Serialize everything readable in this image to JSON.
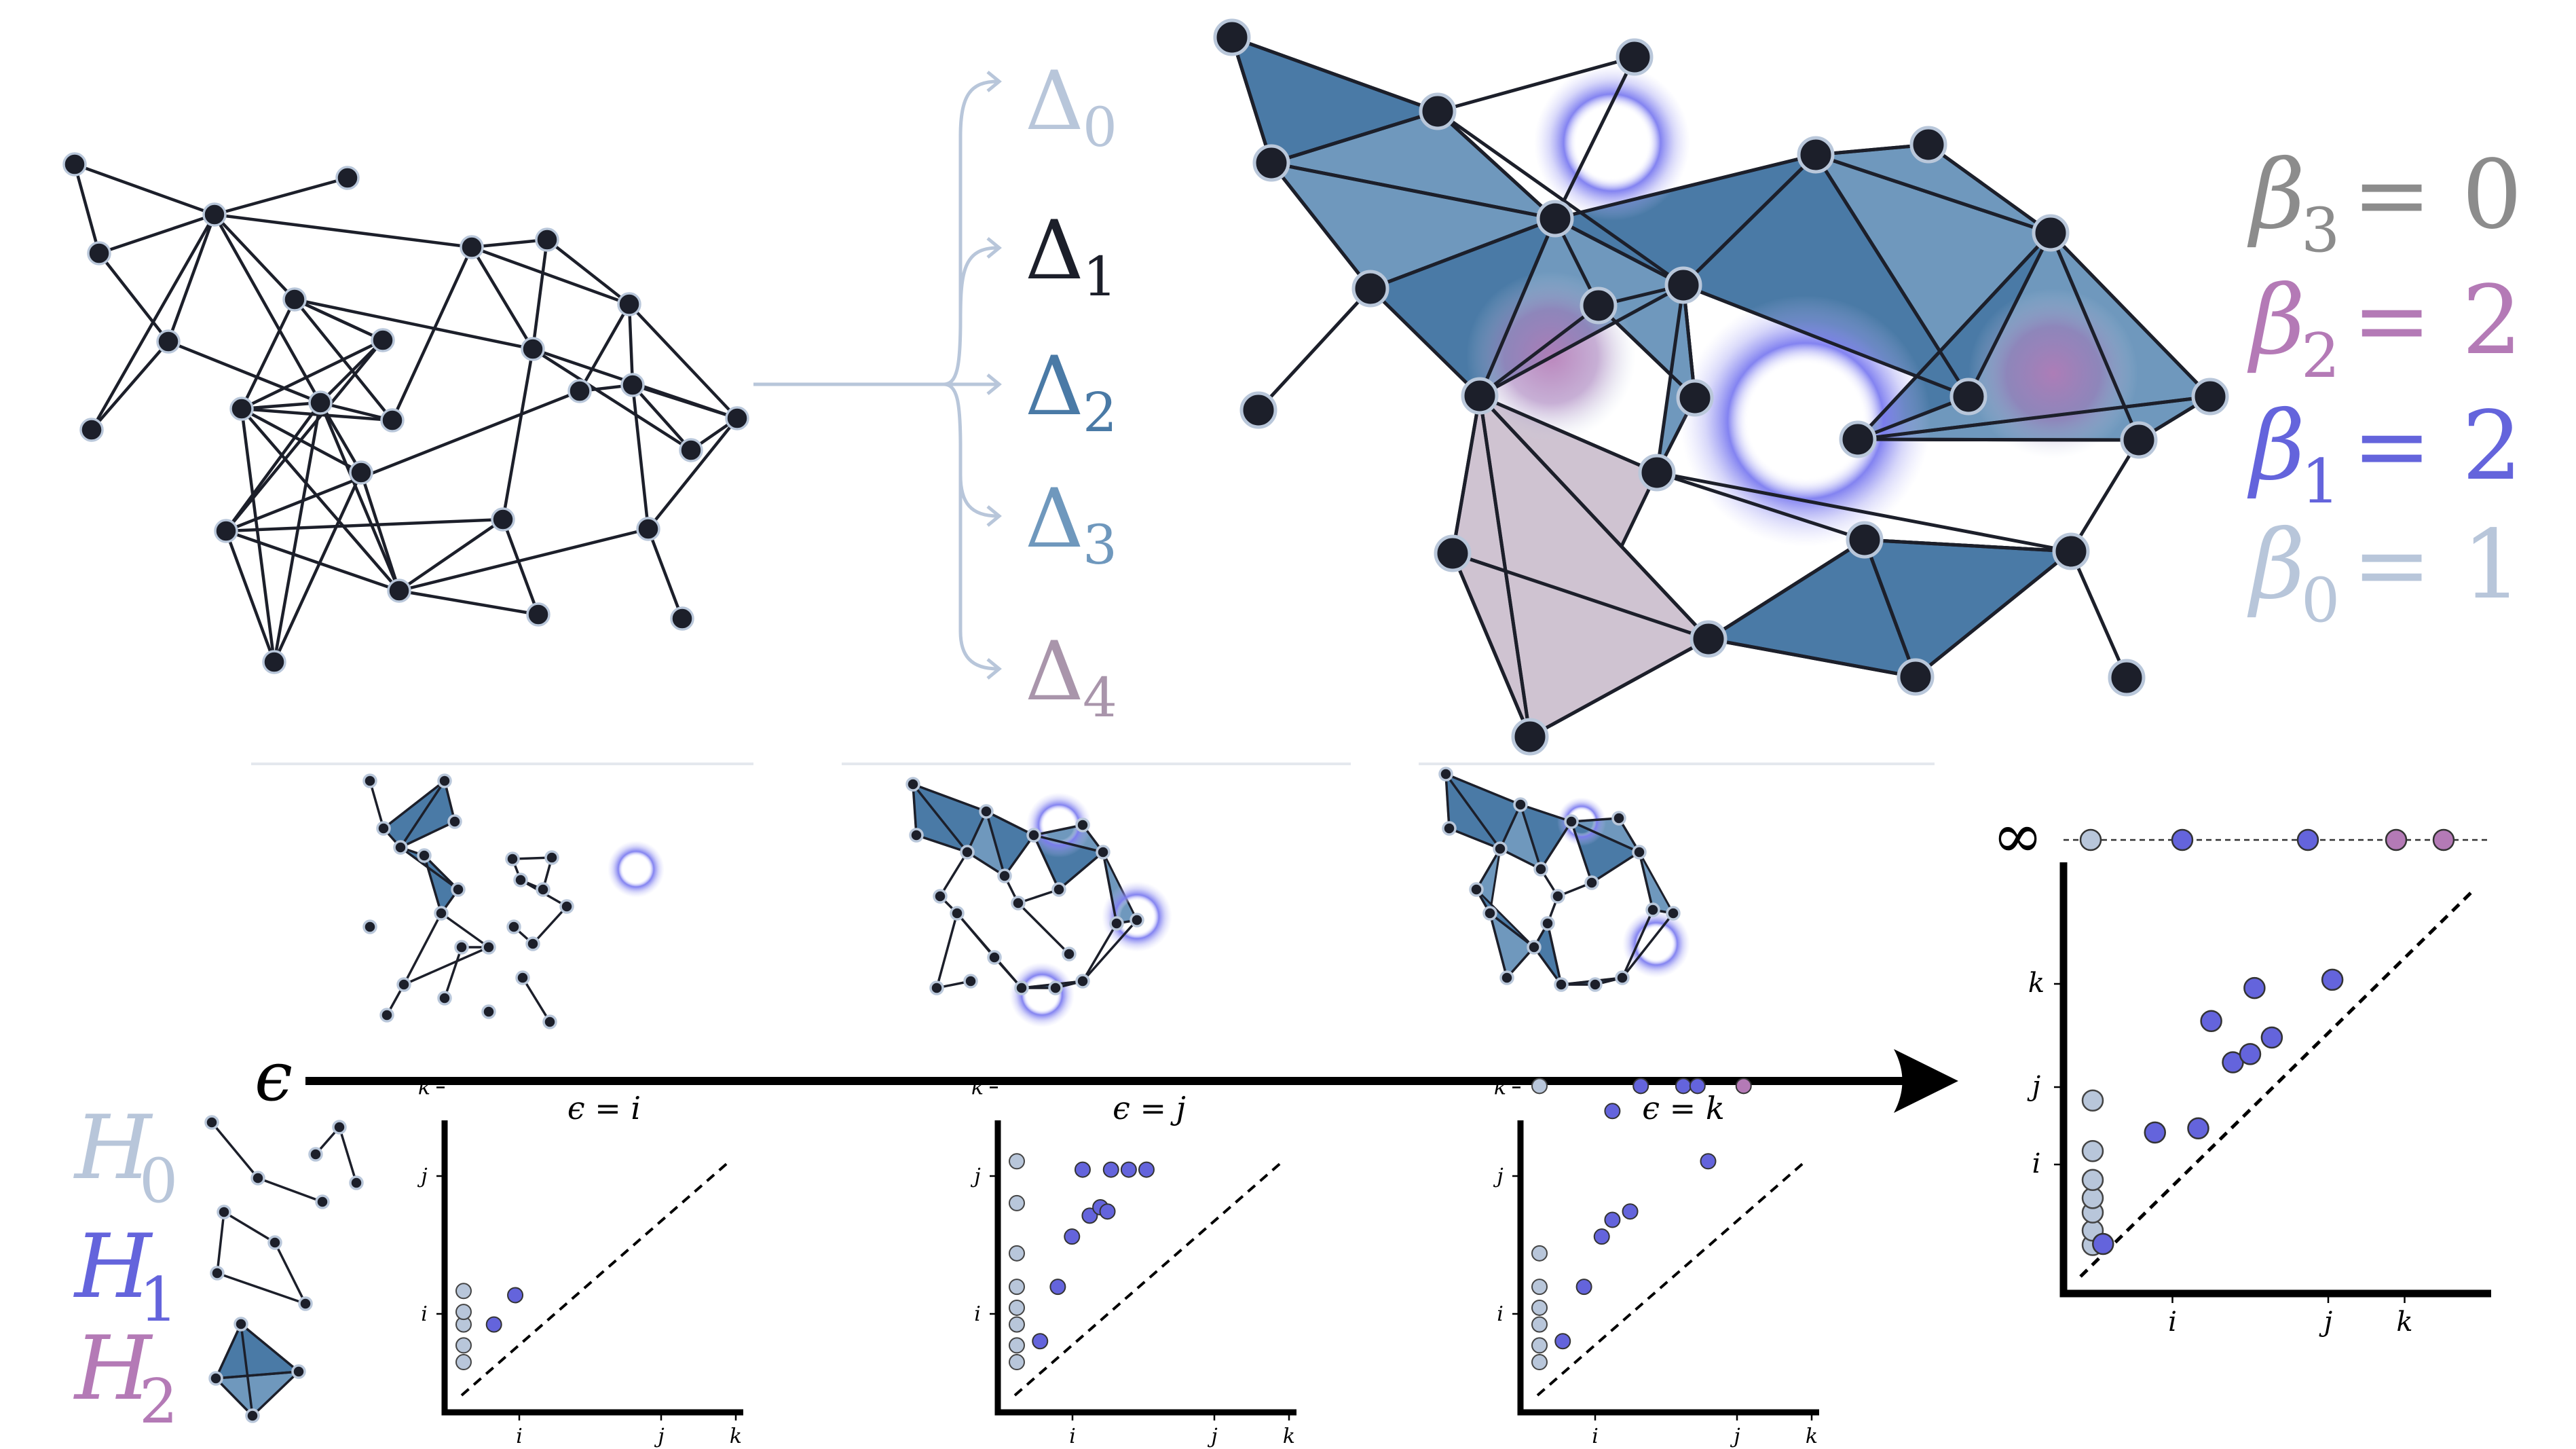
{
  "simplex_labels": [
    {
      "base": "Δ",
      "sub": "0",
      "color": "#b8c6da"
    },
    {
      "base": "Δ",
      "sub": "1",
      "color": "#1c1f2a"
    },
    {
      "base": "Δ",
      "sub": "2",
      "color": "#4a7aa6"
    },
    {
      "base": "Δ",
      "sub": "3",
      "color": "#6f98bd"
    },
    {
      "base": "Δ",
      "sub": "4",
      "color": "#a995ab"
    }
  ],
  "betti_numbers": [
    {
      "symbol": "β",
      "sub": "3",
      "eq": "= 0",
      "color": "#8c8c8c"
    },
    {
      "symbol": "β",
      "sub": "2",
      "eq": "= 2",
      "color": "#b47ab6"
    },
    {
      "symbol": "β",
      "sub": "1",
      "eq": "= 2",
      "color": "#6464dc"
    },
    {
      "symbol": "β",
      "sub": "0",
      "eq": "= 1",
      "color": "#b8c6da"
    }
  ],
  "epsilon_axis": {
    "label": "ϵ"
  },
  "homology_legend": [
    {
      "symbol": "H",
      "sub": "0",
      "color": "#b8c6da"
    },
    {
      "symbol": "H",
      "sub": "1",
      "color": "#6464dc"
    },
    {
      "symbol": "H",
      "sub": "2",
      "color": "#b47ab6"
    }
  ],
  "infinity_label": "∞",
  "colors": {
    "h0": "#b8c6da",
    "h1": "#6464dc",
    "h2": "#b47ab6",
    "simplex_dark": "#4a7aa6",
    "simplex_mid": "#6f98bd",
    "simplex_tetra": "#cfc3d1",
    "edge": "#1c1f2a"
  },
  "chart_data": [
    {
      "type": "scatter",
      "title": "ϵ = i",
      "xtick_labels": [
        "i",
        "j",
        "k"
      ],
      "ytick_labels": [
        "i",
        "j",
        "k"
      ],
      "h0_deaths": [
        0.6,
        0.8,
        1.05,
        1.2,
        1.45
      ],
      "h1_points": [
        {
          "birth": 0.6,
          "death": 1.05
        },
        {
          "birth": 0.9,
          "death": 1.4
        }
      ]
    },
    {
      "type": "scatter",
      "title": "ϵ = j",
      "xtick_labels": [
        "i",
        "j",
        "k"
      ],
      "ytick_labels": [
        "i",
        "j",
        "k"
      ],
      "h0_deaths": [
        0.6,
        0.8,
        1.05,
        1.25,
        1.5,
        1.9,
        2.5,
        3.0
      ],
      "h1_points": [
        {
          "birth": 0.5,
          "death": 0.85
        },
        {
          "birth": 0.75,
          "death": 1.5
        },
        {
          "birth": 0.95,
          "death": 2.1
        },
        {
          "birth": 1.1,
          "death": 2.9
        },
        {
          "birth": 1.2,
          "death": 2.35
        },
        {
          "birth": 1.35,
          "death": 2.45
        },
        {
          "birth": 1.45,
          "death": 2.4
        },
        {
          "birth": 1.5,
          "death": 2.9
        },
        {
          "birth": 1.75,
          "death": 2.9
        },
        {
          "birth": 2.0,
          "death": 2.9
        }
      ]
    },
    {
      "type": "scatter",
      "title": "ϵ = k",
      "xtick_labels": [
        "i",
        "j",
        "k"
      ],
      "ytick_labels": [
        "i",
        "j",
        "k"
      ],
      "h0_deaths": [
        0.6,
        0.8,
        1.05,
        1.25,
        1.5,
        1.9,
        3.9
      ],
      "h1_points": [
        {
          "birth": 0.5,
          "death": 0.85
        },
        {
          "birth": 0.8,
          "death": 1.5
        },
        {
          "birth": 1.05,
          "death": 2.1
        },
        {
          "birth": 1.2,
          "death": 3.6
        },
        {
          "birth": 1.2,
          "death": 2.3
        },
        {
          "birth": 1.45,
          "death": 2.4
        },
        {
          "birth": 1.6,
          "death": 3.9
        },
        {
          "birth": 2.2,
          "death": 3.9
        },
        {
          "birth": 2.4,
          "death": 3.9
        },
        {
          "birth": 2.55,
          "death": 3.0
        }
      ],
      "h2_points": [
        {
          "birth": 3.05,
          "death": 3.9
        }
      ]
    },
    {
      "type": "scatter",
      "title": "",
      "xtick_labels": [
        "i",
        "j",
        "k"
      ],
      "ytick_labels": [
        "i",
        "j",
        "k"
      ],
      "h0_deaths": [
        0.6,
        0.8,
        1.05,
        1.25,
        1.5,
        1.9,
        2.6
      ],
      "h1_points": [
        {
          "birth": 0.3,
          "death": 0.6
        },
        {
          "birth": 0.9,
          "death": 1.95
        },
        {
          "birth": 1.4,
          "death": 2.0
        },
        {
          "birth": 1.55,
          "death": 3.3
        },
        {
          "birth": 1.8,
          "death": 2.8
        },
        {
          "birth": 2.0,
          "death": 2.9
        },
        {
          "birth": 2.05,
          "death": 3.7
        },
        {
          "birth": 2.25,
          "death": 3.1
        },
        {
          "birth": 2.95,
          "death": 3.8
        }
      ],
      "infinite_row": [
        "h0",
        "h1",
        "h1",
        "h2",
        "h2"
      ]
    }
  ]
}
